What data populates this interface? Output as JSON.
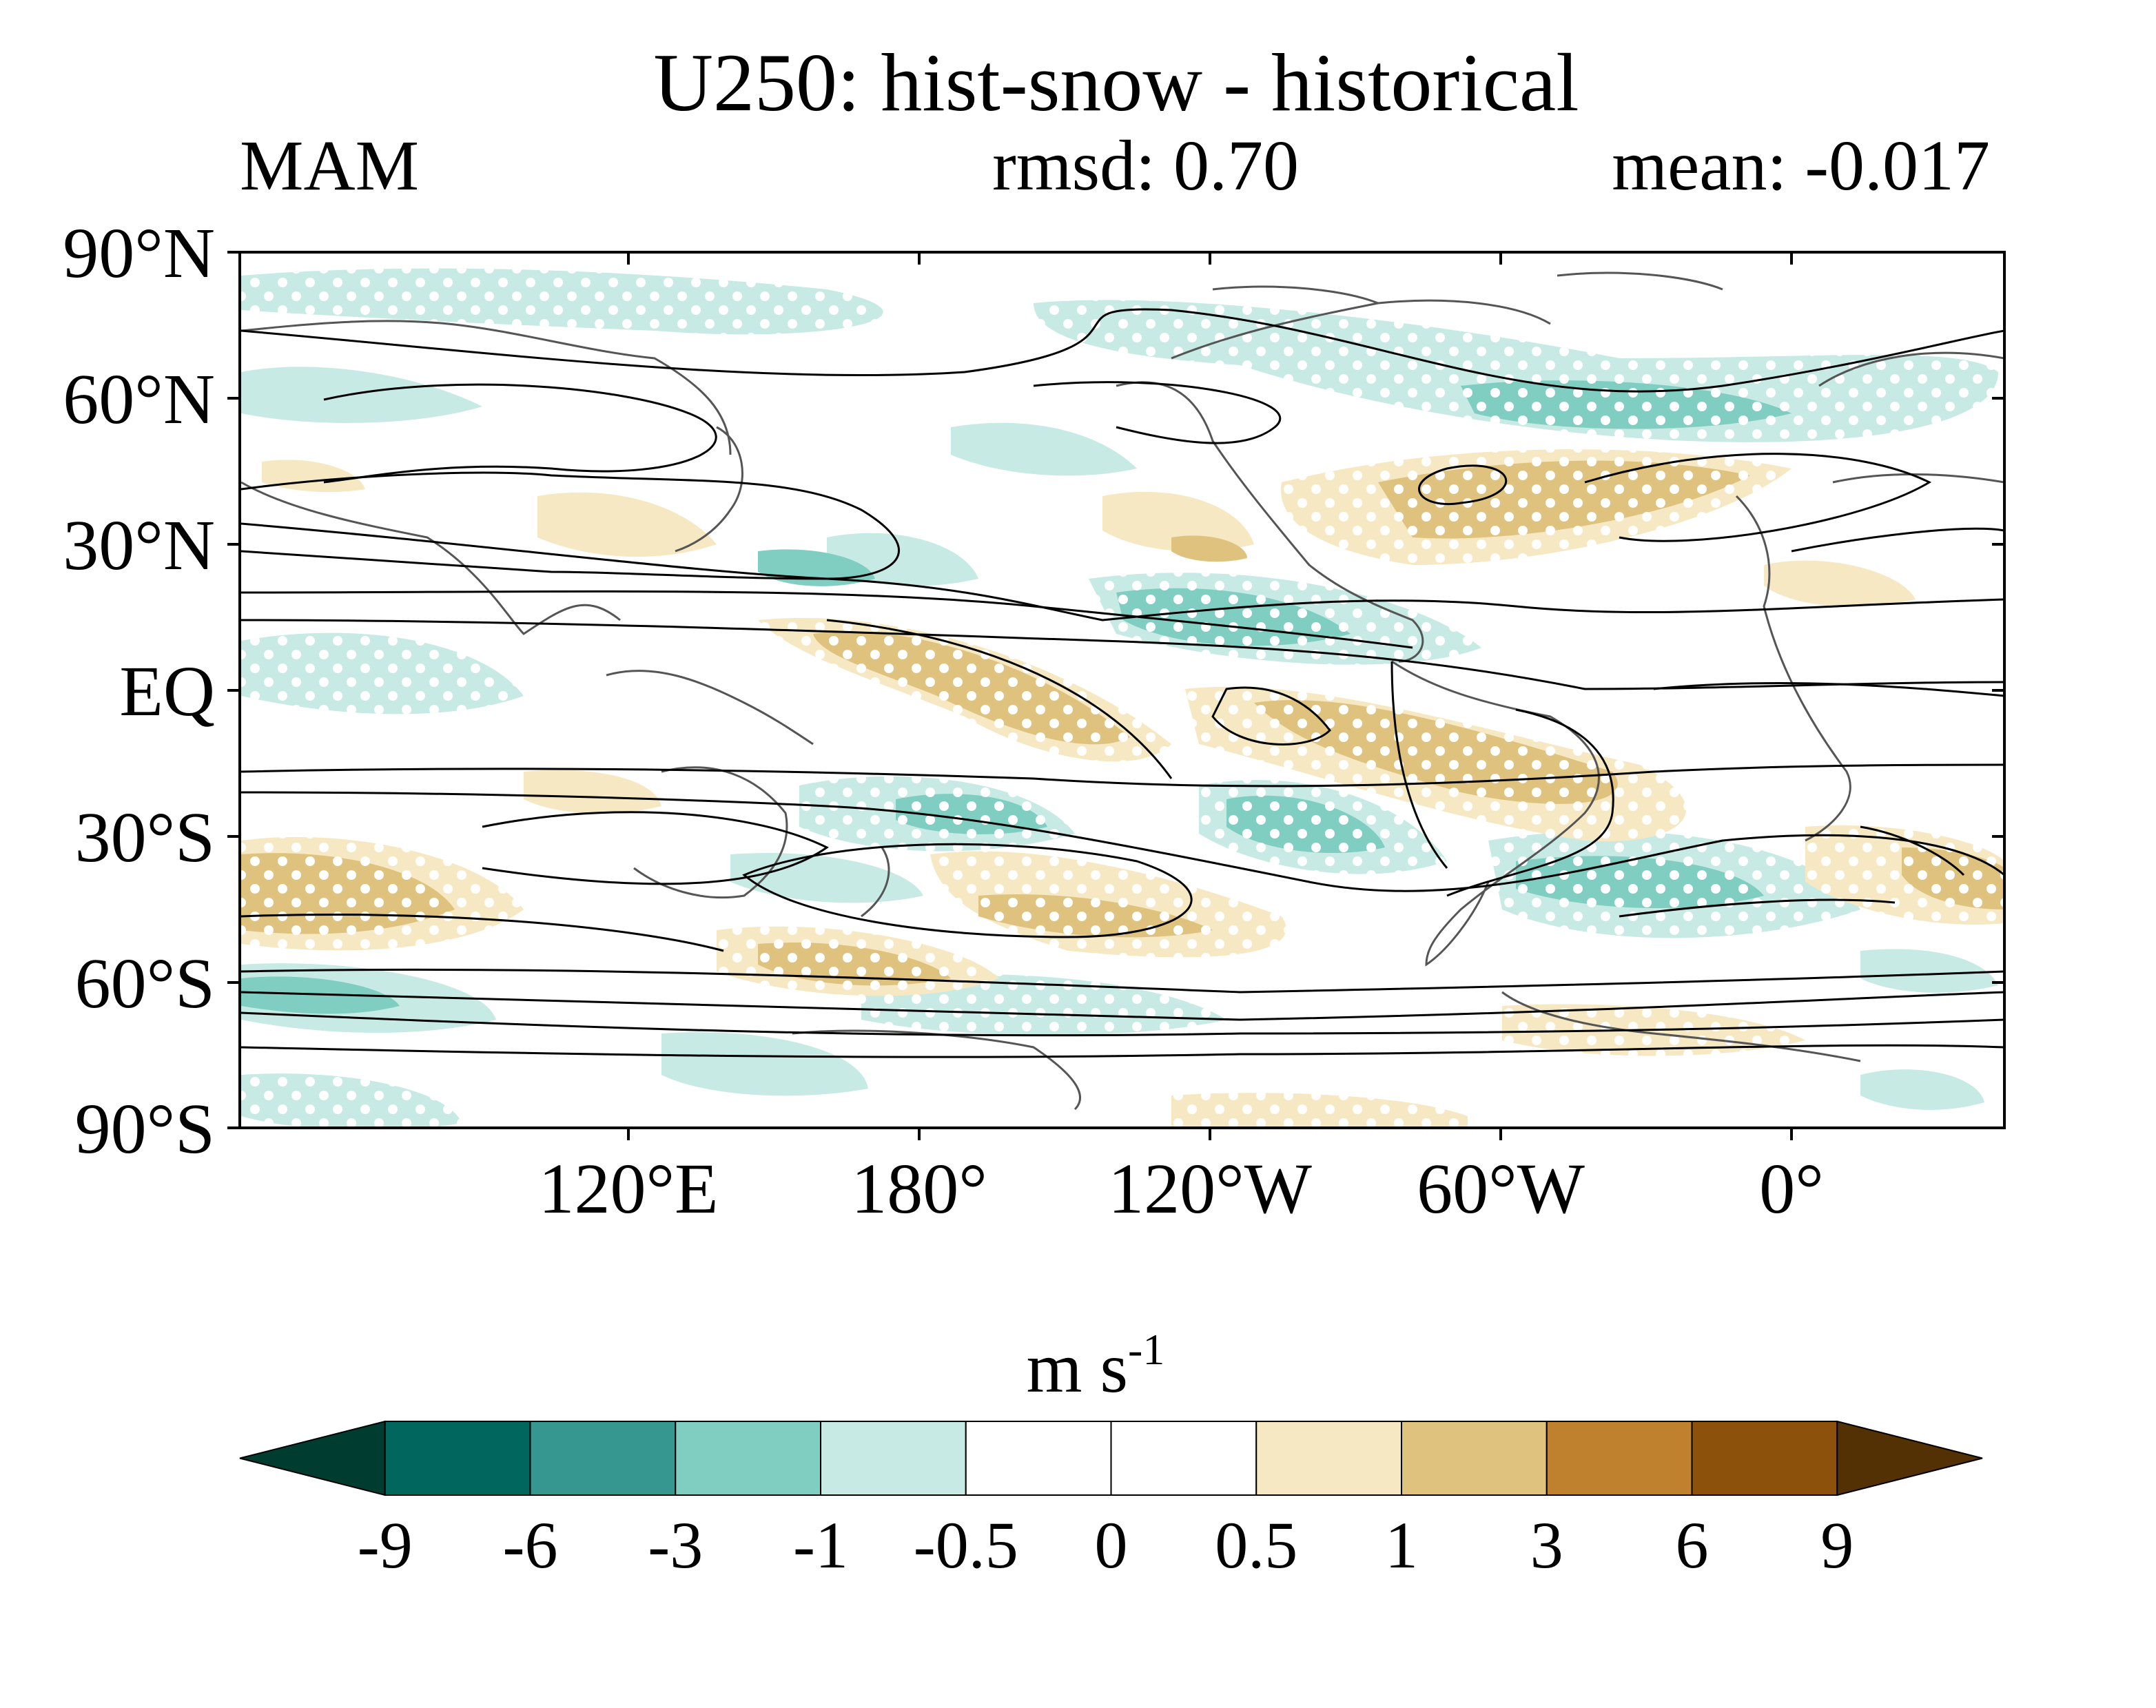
{
  "header": {
    "title": "U250: hist-snow - historical",
    "season": "MAM",
    "rmsd_label": "rmsd: 0.70",
    "mean_label": "mean: -0.017"
  },
  "map": {
    "lat_ticks": [
      "90°N",
      "60°N",
      "30°N",
      "EQ",
      "30°S",
      "60°S",
      "90°S"
    ],
    "lon_ticks": [
      "120°E",
      "180°",
      "120°W",
      "60°W",
      "0°"
    ],
    "lon_range_deg": [
      40,
      400
    ],
    "lat_range_deg": [
      -90,
      90
    ]
  },
  "colorbar": {
    "units_base": "m s",
    "units_exp": "-1",
    "labels": [
      "-9",
      "-6",
      "-3",
      "-1",
      "-0.5",
      "0",
      "0.5",
      "1",
      "3",
      "6",
      "9"
    ],
    "colors": [
      "#003c30",
      "#01665e",
      "#35978f",
      "#80cdc1",
      "#c7eae5",
      "#ffffff",
      "#ffffff",
      "#f6e8c3",
      "#dfc27d",
      "#bf812d",
      "#8c510a",
      "#543005"
    ]
  }
}
